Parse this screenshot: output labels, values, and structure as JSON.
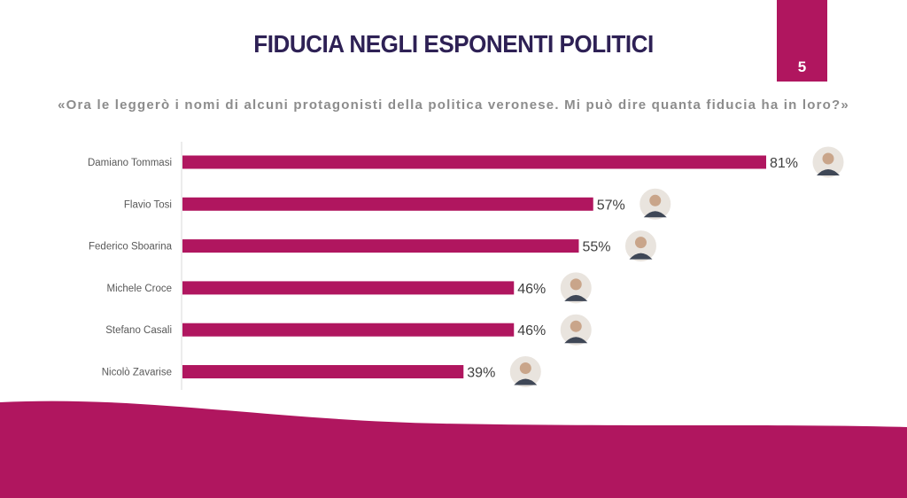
{
  "header": {
    "title": "FIDUCIA NEGLI ESPONENTI POLITICI",
    "page_number": "5",
    "subtitle": "«Ora le leggerò i nomi di alcuni protagonisti della politica veronese. Mi può dire quanta fiducia ha in loro?»"
  },
  "colors": {
    "accent": "#b0165f",
    "title": "#2e2155",
    "subtitle": "#8c8c8c",
    "label": "#595959"
  },
  "chart_data": {
    "type": "bar",
    "orientation": "horizontal",
    "categories": [
      "Damiano Tommasi",
      "Flavio Tosi",
      "Federico Sboarina",
      "Michele Croce",
      "Stefano Casali",
      "Nicolò Zavarise"
    ],
    "values": [
      81,
      57,
      55,
      46,
      46,
      39
    ],
    "value_labels": [
      "81%",
      "57%",
      "55%",
      "46%",
      "46%",
      "39%"
    ],
    "unit": "%",
    "xlim": [
      0,
      81
    ],
    "grid": false,
    "legend": "none",
    "bar_color": "#b0165f",
    "marker_icons": [
      "avatar-photo-icon",
      "avatar-photo-icon",
      "avatar-photo-icon",
      "avatar-photo-icon",
      "avatar-photo-icon",
      "avatar-photo-icon"
    ]
  }
}
